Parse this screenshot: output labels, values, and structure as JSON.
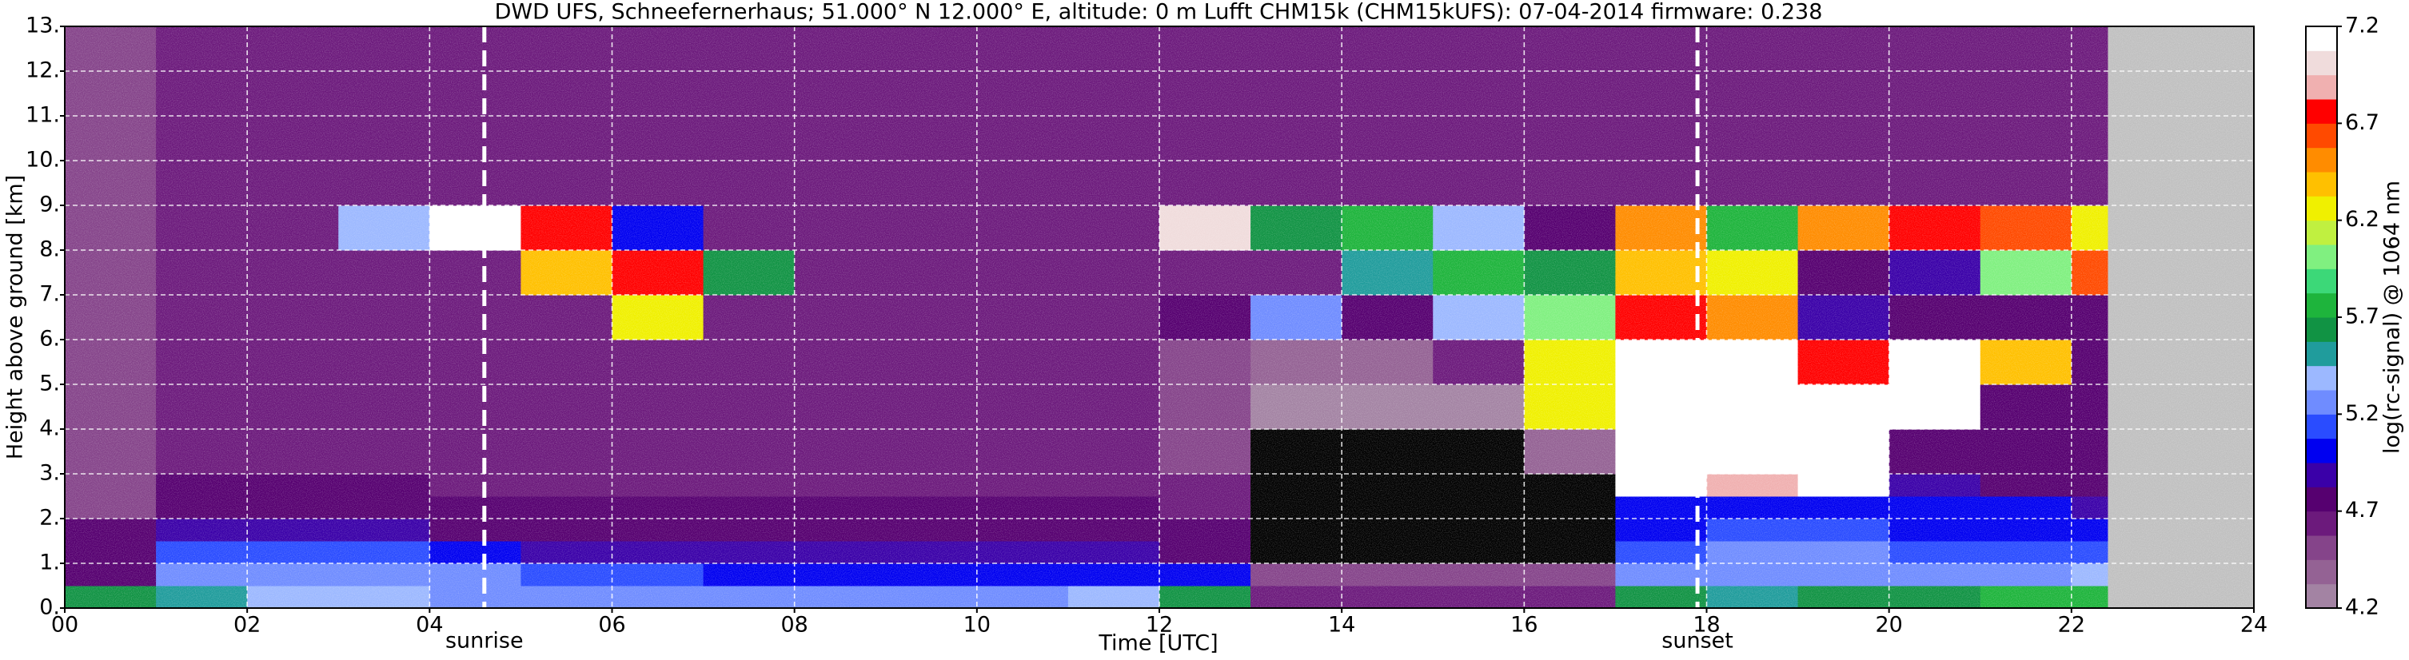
{
  "chart_data": {
    "type": "heatmap",
    "title": "DWD UFS, Schneefernerhaus; 51.000° N 12.000° E, altitude: 0 m    Lufft CHM15k (CHM15kUFS): 07-04-2014    firmware: 0.238",
    "xlabel": "Time [UTC]",
    "ylabel": "Height above ground [km]",
    "colorbar_label": "log(rc-signal) @ 1064 nm",
    "xlim": [
      0,
      24
    ],
    "ylim": [
      0,
      13
    ],
    "xticks": [
      {
        "value": 0,
        "label": "00"
      },
      {
        "value": 2,
        "label": "02"
      },
      {
        "value": 4,
        "label": "04"
      },
      {
        "value": 6,
        "label": "06"
      },
      {
        "value": 8,
        "label": "08"
      },
      10,
      12,
      14,
      16,
      18,
      20,
      22,
      24
    ],
    "yticks": [
      {
        "value": 0,
        "label": "0."
      },
      {
        "value": 1,
        "label": "1."
      },
      {
        "value": 2,
        "label": "2."
      },
      {
        "value": 3,
        "label": "3."
      },
      {
        "value": 4,
        "label": "4."
      },
      {
        "value": 5,
        "label": "5."
      },
      {
        "value": 6,
        "label": "6."
      },
      {
        "value": 7,
        "label": "7."
      },
      {
        "value": 8,
        "label": "8."
      },
      {
        "value": 9,
        "label": "9."
      },
      {
        "value": 10,
        "label": "10."
      },
      {
        "value": 11,
        "label": "11."
      },
      {
        "value": 12,
        "label": "12."
      },
      {
        "value": 13,
        "label": "13."
      }
    ],
    "grid": true,
    "clim": [
      4.2,
      7.2
    ],
    "cticks": [
      4.2,
      4.7,
      5.2,
      5.7,
      6.2,
      6.7,
      7.2
    ],
    "colors": [
      "#a383a3",
      "#946294",
      "#85448a",
      "#6c1a7c",
      "#560070",
      "#3a00a8",
      "#0000f0",
      "#2a4cff",
      "#6f8cff",
      "#9cb8ff",
      "#209c9c",
      "#119344",
      "#1eb43c",
      "#3cd878",
      "#80f080",
      "#c0f040",
      "#f0f000",
      "#ffc000",
      "#ff8c00",
      "#ff4a00",
      "#ff0000",
      "#f0b0b0",
      "#f0dcdc",
      "#ffffff"
    ],
    "under_color": "#000000",
    "no_data_color": "#c0c0c0",
    "x_bins": [
      0,
      1,
      2,
      3,
      4,
      5,
      6,
      7,
      8,
      9,
      10,
      11,
      12,
      13,
      14,
      15,
      16,
      17,
      18,
      19,
      20,
      21,
      22,
      22.4
    ],
    "y_bins": [
      0,
      0.5,
      1,
      1.5,
      2,
      2.5,
      3,
      4,
      5,
      6,
      7,
      8,
      9,
      10,
      13
    ],
    "values": [
      [
        5.6,
        5.5,
        5.4,
        5.4,
        5.3,
        5.3,
        5.2,
        5.2,
        5.2,
        5.2,
        5.2,
        5.4,
        5.6,
        4.6,
        4.6,
        4.6,
        4.6,
        5.6,
        5.5,
        5.6,
        5.6,
        5.7,
        5.7
      ],
      [
        4.8,
        5.2,
        5.2,
        5.2,
        5.2,
        5.1,
        5.1,
        5.0,
        5.0,
        5.0,
        5.0,
        5.0,
        5.0,
        4.5,
        4.5,
        4.5,
        4.5,
        5.2,
        5.2,
        5.3,
        5.3,
        5.3,
        5.4
      ],
      [
        4.7,
        5.1,
        5.1,
        5.1,
        5.0,
        4.9,
        4.9,
        4.9,
        4.9,
        4.9,
        4.9,
        4.9,
        4.8,
        4.0,
        4.0,
        4.0,
        4.0,
        5.1,
        5.2,
        5.2,
        5.1,
        5.1,
        5.1
      ],
      [
        4.7,
        4.9,
        4.9,
        4.9,
        4.8,
        4.8,
        4.8,
        4.8,
        4.8,
        4.8,
        4.8,
        4.8,
        4.7,
        4.0,
        4.0,
        4.0,
        4.0,
        5.0,
        5.1,
        5.1,
        5.0,
        5.0,
        5.0
      ],
      [
        4.5,
        4.8,
        4.8,
        4.8,
        4.7,
        4.7,
        4.7,
        4.7,
        4.7,
        4.7,
        4.7,
        4.7,
        4.6,
        4.0,
        4.0,
        4.0,
        4.0,
        5.0,
        5.0,
        5.0,
        5.0,
        5.0,
        4.9
      ],
      [
        4.5,
        4.7,
        4.7,
        4.7,
        4.6,
        4.6,
        4.6,
        4.6,
        4.6,
        4.6,
        4.6,
        4.6,
        4.6,
        4.0,
        4.0,
        4.0,
        4.0,
        7.2,
        6.9,
        7.2,
        4.9,
        4.8,
        4.8
      ],
      [
        4.5,
        4.6,
        4.6,
        4.6,
        4.6,
        4.6,
        4.6,
        4.6,
        4.6,
        4.6,
        4.6,
        4.6,
        4.5,
        4.0,
        4.0,
        4.0,
        4.4,
        7.2,
        7.2,
        7.2,
        4.7,
        4.7,
        4.7
      ],
      [
        4.5,
        4.6,
        4.6,
        4.6,
        4.6,
        4.6,
        4.6,
        4.6,
        4.6,
        4.6,
        4.6,
        4.6,
        4.5,
        4.2,
        4.2,
        4.3,
        6.2,
        7.2,
        7.2,
        7.2,
        7.2,
        4.7,
        4.7
      ],
      [
        4.5,
        4.6,
        4.6,
        4.6,
        4.6,
        4.6,
        4.6,
        4.6,
        4.6,
        4.6,
        4.6,
        4.6,
        4.5,
        4.4,
        4.4,
        4.6,
        6.3,
        7.2,
        7.2,
        6.8,
        7.2,
        6.4,
        4.7
      ],
      [
        4.5,
        4.6,
        4.6,
        4.6,
        4.6,
        4.6,
        6.3,
        4.6,
        4.6,
        4.6,
        4.6,
        4.6,
        4.7,
        5.3,
        4.8,
        5.4,
        6.0,
        6.8,
        6.5,
        4.9,
        4.8,
        4.7,
        4.7
      ],
      [
        4.5,
        4.6,
        4.6,
        4.6,
        4.6,
        6.4,
        6.8,
        5.6,
        4.6,
        4.6,
        4.6,
        4.6,
        4.6,
        4.6,
        5.5,
        5.8,
        5.6,
        6.4,
        6.2,
        4.8,
        4.9,
        6.0,
        6.6
      ],
      [
        4.5,
        4.6,
        4.6,
        5.4,
        7.2,
        6.8,
        5.0,
        4.6,
        4.6,
        4.6,
        4.6,
        4.6,
        7.0,
        5.6,
        5.8,
        5.4,
        4.8,
        6.5,
        5.8,
        6.5,
        6.8,
        6.6,
        6.2
      ],
      [
        4.5,
        4.6,
        4.6,
        4.6,
        4.6,
        4.6,
        4.6,
        4.6,
        4.6,
        4.6,
        4.6,
        4.6,
        4.6,
        4.6,
        4.6,
        4.6,
        4.6,
        4.6,
        4.6,
        4.6,
        4.6,
        4.6,
        4.6
      ],
      [
        4.5,
        4.6,
        4.6,
        4.6,
        4.6,
        4.6,
        4.6,
        4.6,
        4.6,
        4.6,
        4.6,
        4.6,
        4.6,
        4.6,
        4.6,
        4.6,
        4.6,
        4.6,
        4.6,
        4.6,
        4.6,
        4.6,
        4.6
      ]
    ],
    "annotations": [
      {
        "label": "sunrise",
        "x": 4.6
      },
      {
        "label": "sunset",
        "x": 17.9
      }
    ]
  }
}
